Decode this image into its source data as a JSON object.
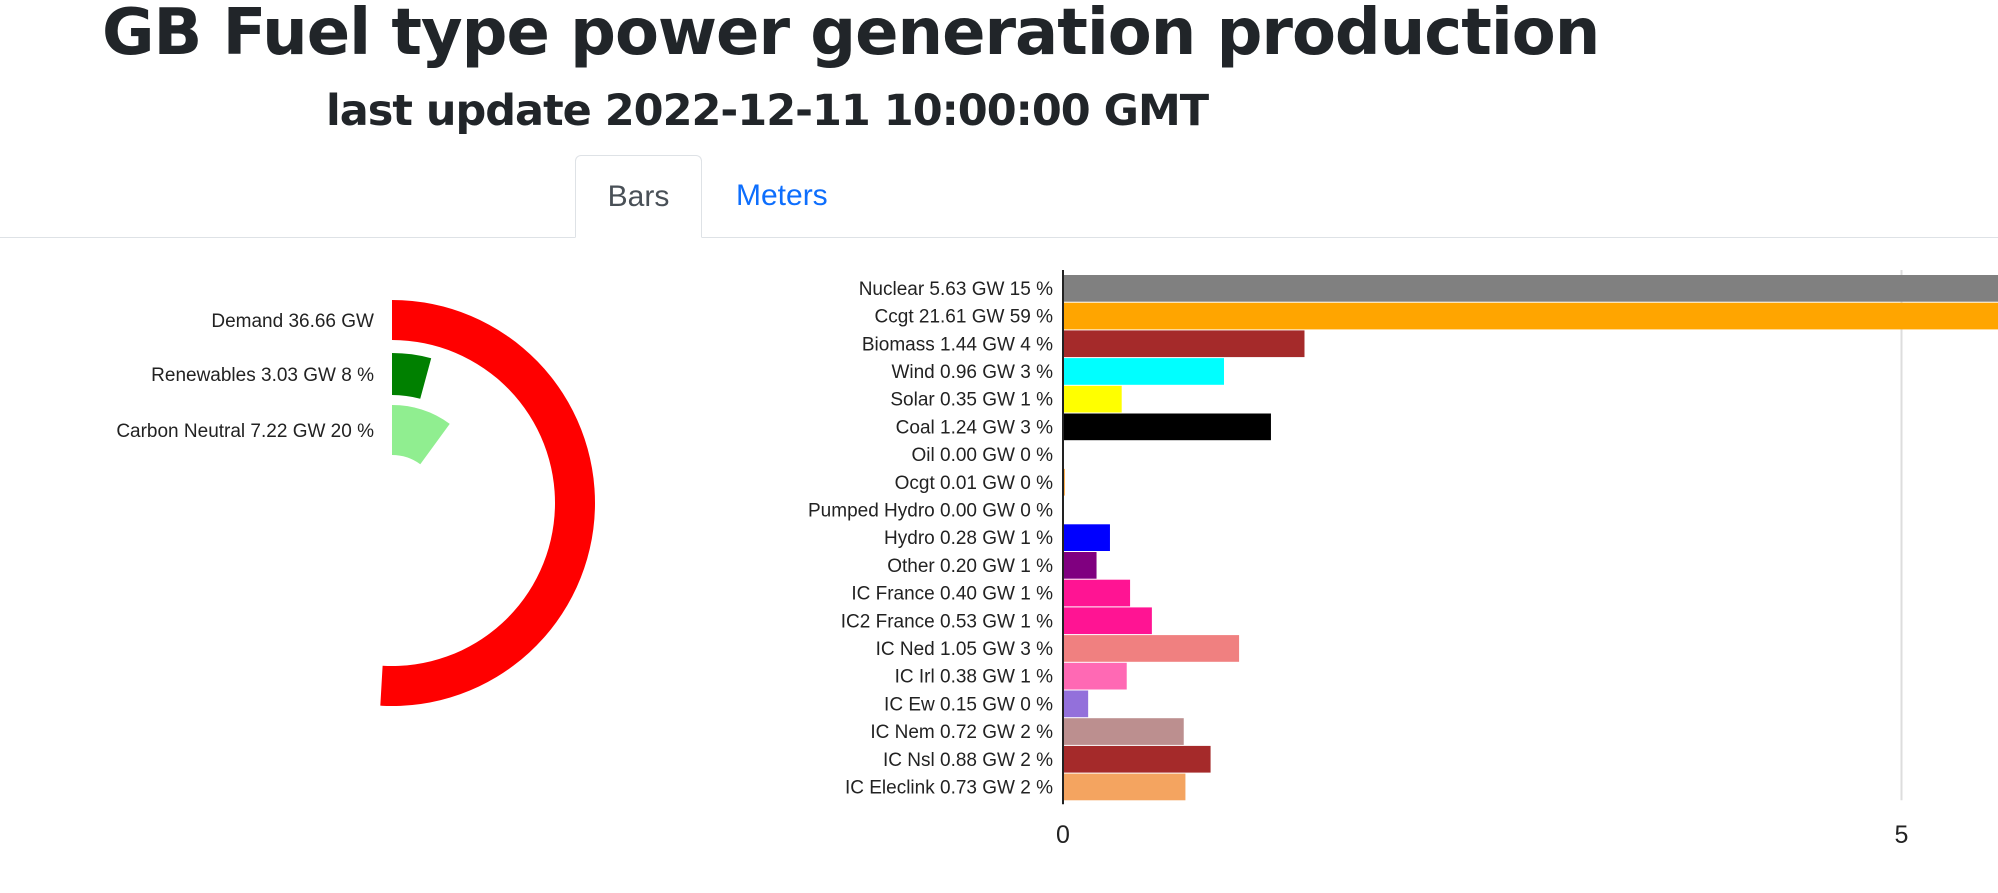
{
  "header": {
    "title": "GB Fuel type power generation production",
    "subtitle": "last update 2022-12-11 10:00:00 GMT"
  },
  "tabs": [
    {
      "label": "Bars",
      "active": true
    },
    {
      "label": "Meters",
      "active": false
    }
  ],
  "chart_data": [
    {
      "type": "radial-bar",
      "series": [
        {
          "label": "Demand 36.66 GW",
          "value": 36.66,
          "color": "#ff0000"
        },
        {
          "label": "Renewables 3.03 GW 8 %",
          "value": 3.03,
          "percent": 8,
          "color": "#008000"
        },
        {
          "label": "Carbon Neutral 7.22 GW 20 %",
          "value": 7.22,
          "percent": 20,
          "color": "#90ee90"
        }
      ]
    },
    {
      "type": "bar",
      "orientation": "horizontal",
      "xlim": [
        0,
        25
      ],
      "xticks": [
        0,
        5,
        10,
        15,
        20,
        25
      ],
      "grid": true,
      "unit": "GW",
      "bars": [
        {
          "label": "Nuclear 5.63 GW 15 %",
          "value": 5.63,
          "color": "#808080"
        },
        {
          "label": "Ccgt 21.61 GW 59 %",
          "value": 21.61,
          "color": "#ffa500"
        },
        {
          "label": "Biomass 1.44 GW 4 %",
          "value": 1.44,
          "color": "#a52a2a"
        },
        {
          "label": "Wind 0.96 GW 3 %",
          "value": 0.96,
          "color": "#00ffff"
        },
        {
          "label": "Solar 0.35 GW 1 %",
          "value": 0.35,
          "color": "#ffff00"
        },
        {
          "label": "Coal 1.24 GW 3 %",
          "value": 1.24,
          "color": "#000000"
        },
        {
          "label": "Oil 0.00 GW 0 %",
          "value": 0.0,
          "color": "#808000"
        },
        {
          "label": "Ocgt 0.01 GW 0 %",
          "value": 0.01,
          "color": "#ff8c00"
        },
        {
          "label": "Pumped Hydro 0.00 GW 0 %",
          "value": 0.0,
          "color": "#4682b4"
        },
        {
          "label": "Hydro 0.28 GW 1 %",
          "value": 0.28,
          "color": "#0000ff"
        },
        {
          "label": "Other 0.20 GW 1 %",
          "value": 0.2,
          "color": "#800080"
        },
        {
          "label": "IC France 0.40 GW 1 %",
          "value": 0.4,
          "color": "#ff1493"
        },
        {
          "label": "IC2 France 0.53 GW 1 %",
          "value": 0.53,
          "color": "#ff1493"
        },
        {
          "label": "IC Ned 1.05 GW 3 %",
          "value": 1.05,
          "color": "#f08080"
        },
        {
          "label": "IC Irl 0.38 GW 1 %",
          "value": 0.38,
          "color": "#ff69b4"
        },
        {
          "label": "IC Ew 0.15 GW 0 %",
          "value": 0.15,
          "color": "#9370db"
        },
        {
          "label": "IC Nem 0.72 GW 2 %",
          "value": 0.72,
          "color": "#bc8f8f"
        },
        {
          "label": "IC Nsl 0.88 GW 2 %",
          "value": 0.88,
          "color": "#a52a2a"
        },
        {
          "label": "IC Eleclink 0.73 GW 2 %",
          "value": 0.73,
          "color": "#f4a460"
        }
      ]
    }
  ]
}
